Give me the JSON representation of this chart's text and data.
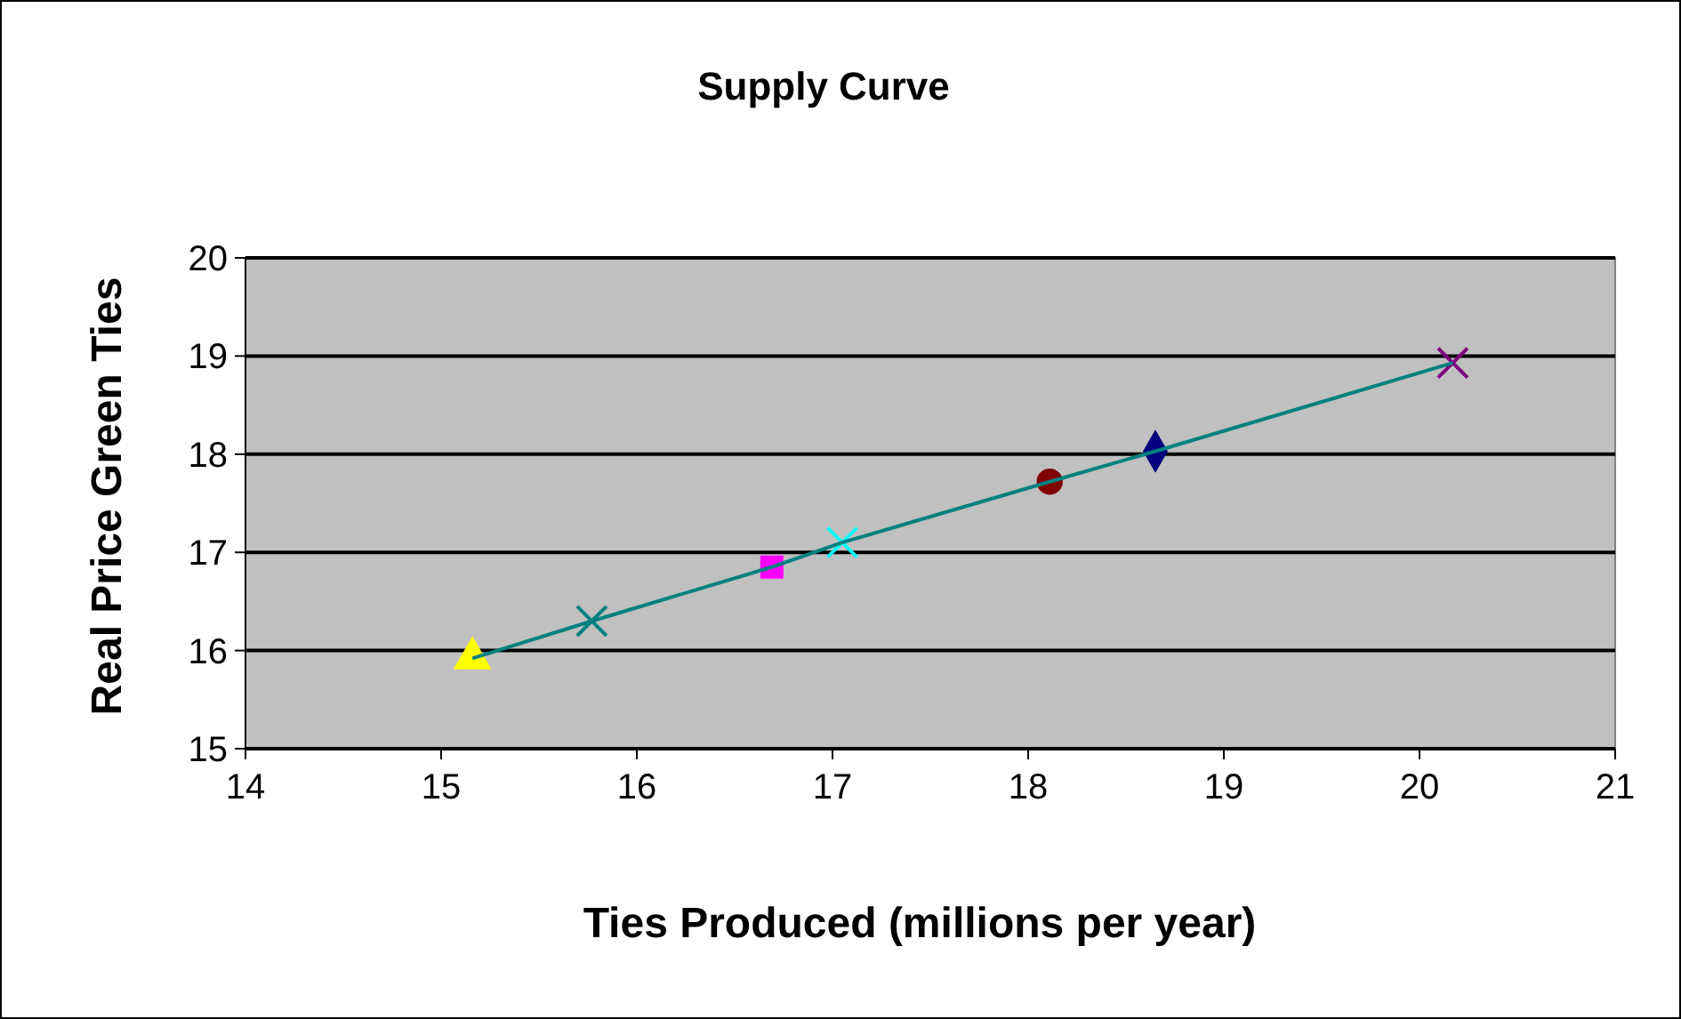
{
  "chart_data": {
    "type": "scatter",
    "title": "Supply Curve",
    "xlabel": "Ties Produced (millions per year)",
    "ylabel": "Real Price Green Ties",
    "xlim": [
      14,
      21
    ],
    "xticks": [
      14,
      15,
      16,
      17,
      18,
      19,
      20,
      21
    ],
    "ylim": [
      15,
      20
    ],
    "yticks": [
      15,
      16,
      17,
      18,
      19,
      20
    ],
    "grid": "y",
    "series": [
      {
        "type": "line",
        "color": "#008080",
        "marker": "none",
        "x": [
          15.16,
          15.77,
          16.69,
          17.05,
          18.11,
          18.65,
          20.17
        ],
        "values": [
          15.92,
          16.3,
          16.85,
          17.1,
          17.72,
          18.03,
          18.93
        ]
      },
      {
        "color": "#ffff00",
        "marker": "triangle",
        "x": [
          15.16
        ],
        "values": [
          15.92
        ]
      },
      {
        "color": "#008080",
        "marker": "cross",
        "x": [
          15.77
        ],
        "values": [
          16.3
        ]
      },
      {
        "color": "#ff00ff",
        "marker": "square",
        "x": [
          16.69
        ],
        "values": [
          16.85
        ]
      },
      {
        "color": "#00ffff",
        "marker": "cross",
        "x": [
          17.05
        ],
        "values": [
          17.1
        ]
      },
      {
        "color": "#800000",
        "marker": "circle",
        "x": [
          18.11
        ],
        "values": [
          17.72
        ]
      },
      {
        "color": "#000080",
        "marker": "diamond",
        "x": [
          18.65
        ],
        "values": [
          18.03
        ]
      },
      {
        "color": "#800080",
        "marker": "cross",
        "x": [
          20.17
        ],
        "values": [
          18.93
        ]
      }
    ]
  }
}
